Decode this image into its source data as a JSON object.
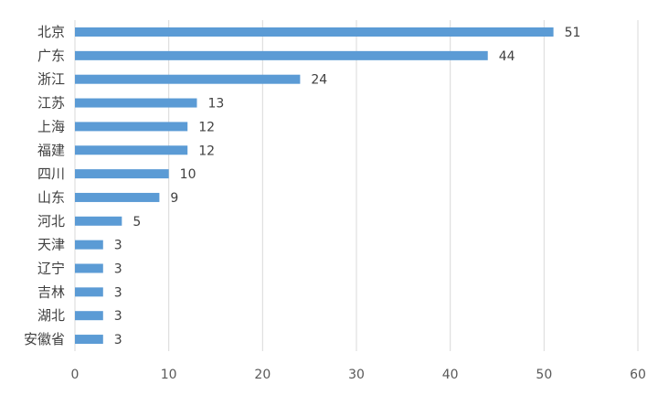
{
  "chart_data": {
    "type": "bar",
    "orientation": "horizontal",
    "categories": [
      "北京",
      "广东",
      "浙江",
      "江苏",
      "上海",
      "福建",
      "四川",
      "山东",
      "河北",
      "天津",
      "辽宁",
      "吉林",
      "湖北",
      "安徽省"
    ],
    "values": [
      51,
      44,
      24,
      13,
      12,
      12,
      10,
      9,
      5,
      3,
      3,
      3,
      3,
      3
    ],
    "xlim": [
      0,
      60
    ],
    "xticks": [
      0,
      10,
      20,
      30,
      40,
      50,
      60
    ],
    "grid": true,
    "data_labels": true,
    "legend": "none",
    "bar_color": "#5b9bd5"
  }
}
